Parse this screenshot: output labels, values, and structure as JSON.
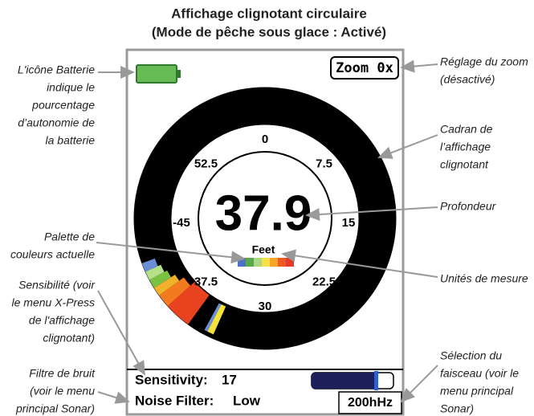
{
  "header": {
    "title": "Affichage clignotant circulaire",
    "subtitle": "(Mode de pêche sous glace : Activé)"
  },
  "screen": {
    "zoom": "Zoom 0x",
    "dial_labels": [
      "0",
      "7.5",
      "15",
      "22.5",
      "30",
      "37.5",
      "-45",
      "52.5"
    ],
    "depth": "37.9",
    "units": "Feet",
    "sensitivity_label": "Sensitivity:",
    "sensitivity_value": "17",
    "noise_filter_label": "Noise Filter:",
    "noise_filter_value": "Low",
    "frequency": "200hHz"
  },
  "annotations": {
    "left": [
      {
        "lines": [
          "L'icône Batterie",
          "indique le",
          "pourcentage",
          "d’autonomie de",
          "la batterie"
        ]
      },
      {
        "lines": [
          "Palette de",
          "couleurs actuelle"
        ]
      },
      {
        "lines": [
          "Sensibilité (voir",
          "le menu X-Press",
          "de l'affichage",
          "clignotant)"
        ]
      },
      {
        "lines": [
          "Filtre de bruit",
          "(voir le menu",
          "principal Sonar)"
        ]
      }
    ],
    "right": [
      {
        "lines": [
          "Réglage du zoom",
          "(désactivé)"
        ]
      },
      {
        "lines": [
          "Cadran de",
          "l’affichage",
          "clignotant"
        ]
      },
      {
        "lines": [
          "Profondeur"
        ]
      },
      {
        "lines": [
          "Unités de mesure"
        ]
      },
      {
        "lines": [
          "Sélection du",
          "faisceau (voir le",
          "menu principal",
          "Sonar)"
        ]
      }
    ]
  }
}
